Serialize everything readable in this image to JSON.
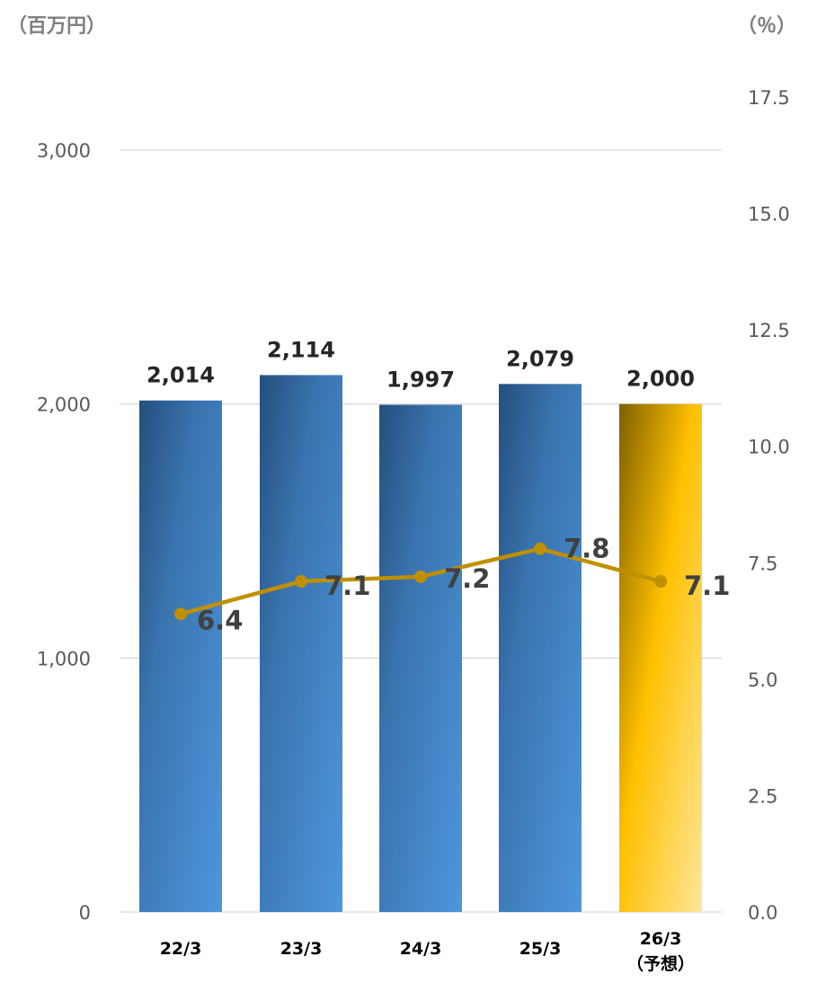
{
  "chart_data": {
    "type": "bar",
    "title": "",
    "left_axis_unit": "（百万円）",
    "right_axis_unit": "（％）",
    "categories": [
      "22/3",
      "23/3",
      "24/3",
      "25/3",
      "26/3"
    ],
    "category_sublabels": [
      "",
      "",
      "",
      "",
      "（予想）"
    ],
    "y_left": {
      "min": 0,
      "max": 3000,
      "ticks": [
        0,
        1000,
        2000,
        3000
      ],
      "tick_labels": [
        "0",
        "1,000",
        "2,000",
        "3,000"
      ],
      "grid": true
    },
    "y_right": {
      "min": 0,
      "max": 17.5,
      "ticks": [
        0,
        2.5,
        5,
        7.5,
        10,
        12.5,
        15,
        17.5
      ],
      "tick_labels": [
        "0.0",
        "2.5",
        "5.0",
        "7.5",
        "10.0",
        "12.5",
        "15.0",
        "17.5"
      ]
    },
    "series": [
      {
        "type": "bar",
        "axis": "left",
        "values": [
          2014,
          2114,
          1997,
          2079,
          2000
        ],
        "value_labels": [
          "2,014",
          "2,114",
          "1,997",
          "2,079",
          "2,000"
        ],
        "color": "#3f7fbf",
        "highlight_index": 4,
        "highlight_color": "#ffc000"
      },
      {
        "type": "line",
        "axis": "right",
        "values": [
          6.4,
          7.1,
          7.2,
          7.8,
          7.1
        ],
        "value_labels": [
          "6.4",
          "7.1",
          "7.2",
          "7.8",
          "7.1"
        ],
        "color": "#bf9000"
      }
    ]
  }
}
